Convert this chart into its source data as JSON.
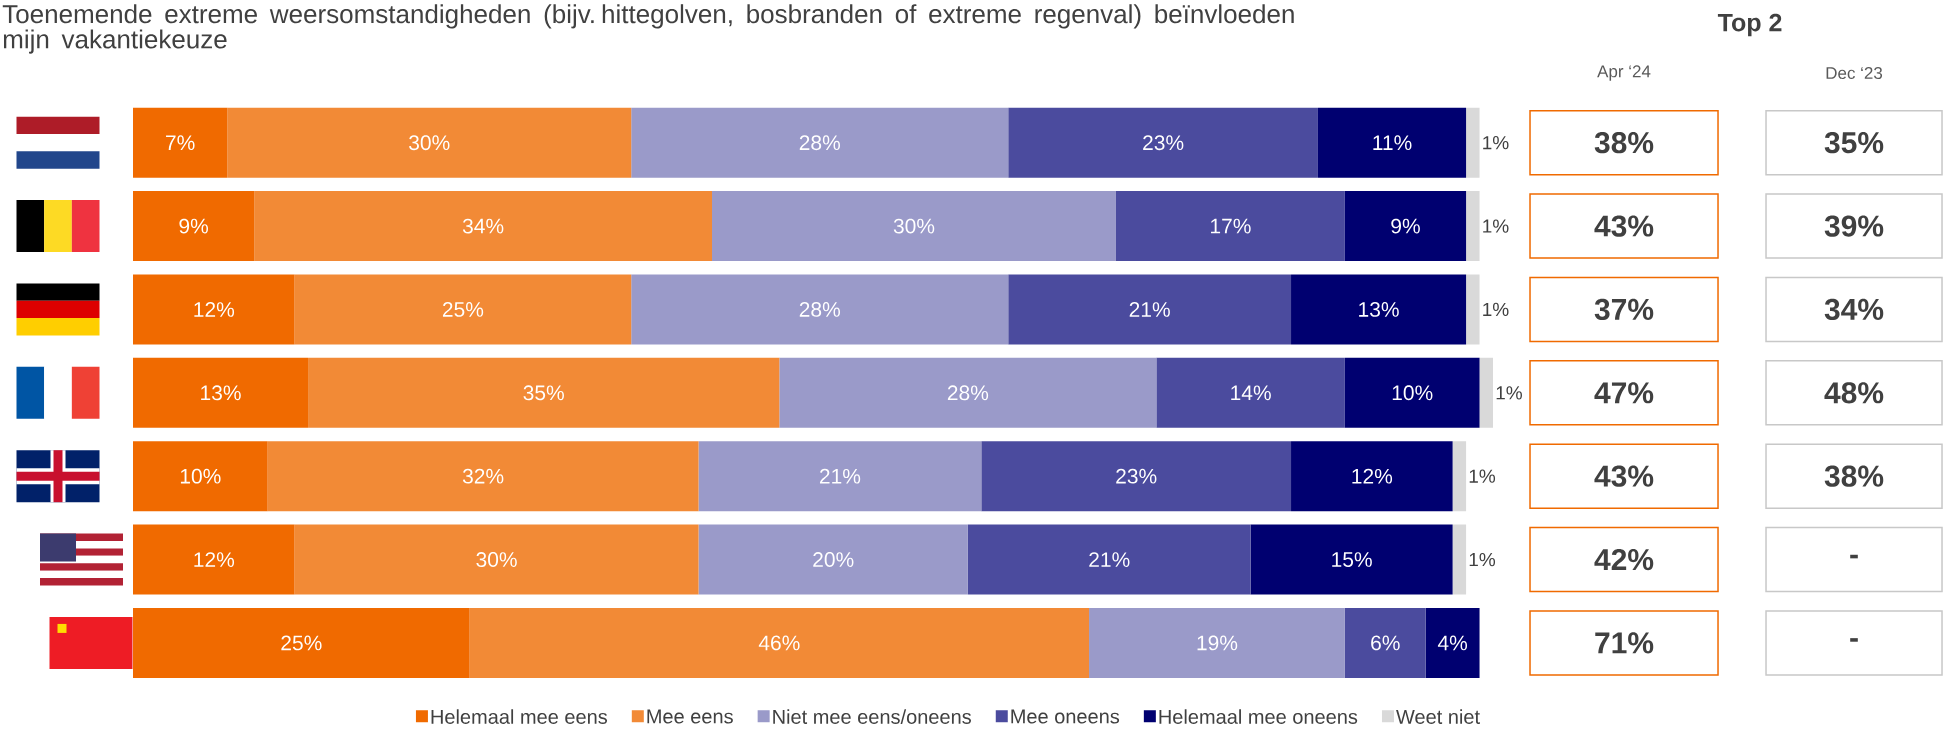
{
  "chart_data": [
    {
      "type": "bar",
      "orientation": "horizontal",
      "stacked": true,
      "title": "Toenemende extreme weersomstandigheden (bijv. hittegolven, bosbranden of extreme regenval) beïnvloeden mijn vakantiekeuze",
      "categories": [
        null,
        null,
        null,
        null,
        null,
        null,
        null
      ],
      "xlim": [
        0,
        101
      ],
      "tick_labels": false,
      "legend": "bottom",
      "series": [
        {
          "name": "Helemaal mee eens",
          "color": "#f06a00",
          "values": [
            7,
            9,
            12,
            13,
            10,
            12,
            25
          ],
          "value_labels": [
            "7%",
            "9%",
            "12%",
            "13%",
            "10%",
            "12%",
            "25%"
          ]
        },
        {
          "name": "Mee eens",
          "color": "#f28a36",
          "values": [
            30,
            34,
            25,
            35,
            32,
            30,
            46
          ],
          "value_labels": [
            "30%",
            "34%",
            "25%",
            "35%",
            "32%",
            "30%",
            "46%"
          ]
        },
        {
          "name": "Niet mee eens/oneens",
          "color": "#9a9ac9",
          "values": [
            28,
            30,
            28,
            28,
            21,
            20,
            19
          ],
          "value_labels": [
            "28%",
            "30%",
            "28%",
            "28%",
            "21%",
            "20%",
            "19%"
          ]
        },
        {
          "name": "Mee oneens",
          "color": "#4b4b9e",
          "values": [
            23,
            17,
            21,
            14,
            23,
            21,
            6
          ],
          "value_labels": [
            "23%",
            "17%",
            "21%",
            "14%",
            "23%",
            "21%",
            "6%"
          ]
        },
        {
          "name": "Helemaal mee oneens",
          "color": "#000070",
          "values": [
            11,
            9,
            13,
            10,
            12,
            15,
            4
          ],
          "value_labels": [
            "11%",
            "9%",
            "13%",
            "10%",
            "12%",
            "15%",
            "4%"
          ]
        },
        {
          "name": "Weet niet",
          "color": "#d9d9d9",
          "values": [
            1,
            1,
            1,
            1,
            1,
            1,
            null
          ],
          "value_labels": [
            "1%",
            "1%",
            "1%",
            "1%",
            "1%",
            "1%",
            null
          ]
        }
      ]
    },
    {
      "type": "other",
      "title": "Top 2",
      "categories": [
        "Apr ‘24",
        "Dec ‘23"
      ],
      "cell_labels": [
        [
          "38%",
          "35%"
        ],
        [
          "43%",
          "39%"
        ],
        [
          "37%",
          "34%"
        ],
        [
          "47%",
          "48%"
        ],
        [
          "43%",
          "38%"
        ],
        [
          "42%",
          "-"
        ],
        [
          "71%",
          "-"
        ]
      ]
    }
  ]
}
